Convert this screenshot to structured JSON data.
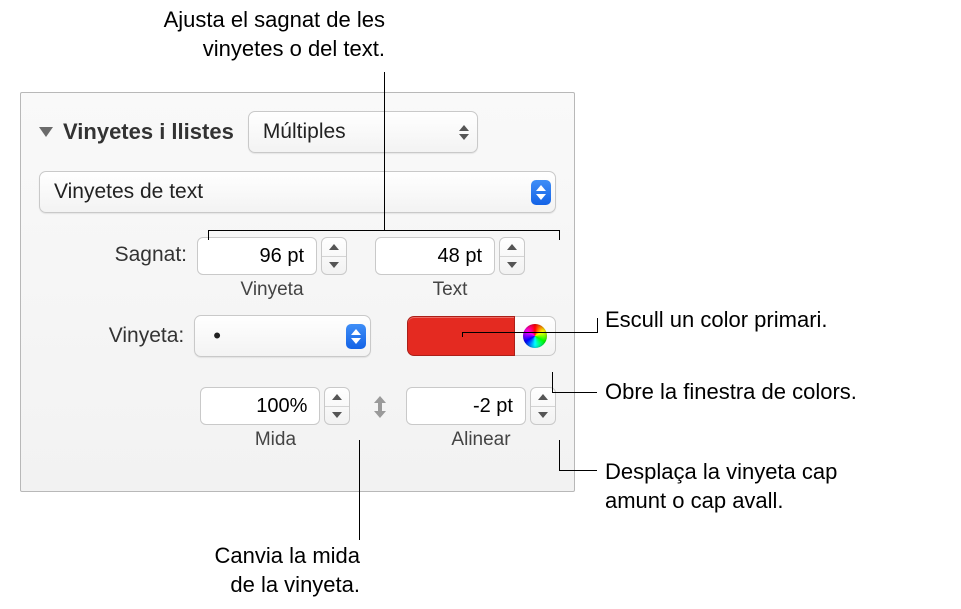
{
  "callouts": {
    "top": "Ajusta el sagnat de les\nvinyetes o del text.",
    "rightPrimary": "Escull un color primari.",
    "rightPicker": "Obre la finestra de colors.",
    "rightAlign": "Desplaça la vinyeta cap\namunt o cap avall.",
    "bottom": "Canvia la mida\nde la vinyeta."
  },
  "panel": {
    "section_title": "Vinyetes i llistes",
    "style_popup": "Múltiples",
    "type_popup": "Vinyetes de text",
    "indent_label": "Sagnat:",
    "bullet_indent": {
      "value": "96 pt",
      "sublabel": "Vinyeta"
    },
    "text_indent": {
      "value": "48 pt",
      "sublabel": "Text"
    },
    "bullet_label": "Vinyeta:",
    "bullet_char": "•",
    "swatch_color": "#e42a21",
    "size": {
      "value": "100%",
      "sublabel": "Mida"
    },
    "align": {
      "value": "-2 pt",
      "sublabel": "Alinear"
    }
  }
}
